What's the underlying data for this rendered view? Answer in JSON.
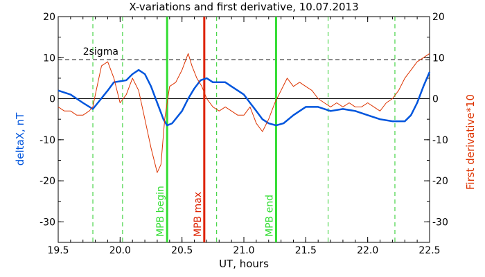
{
  "chart_data": {
    "type": "line",
    "title": "X-variations and first derivative, 10.07.2013",
    "xlabel": "UT, hours",
    "ylabel_left": "deltaX, nT",
    "ylabel_right": "First derivative*10",
    "xlim": [
      19.5,
      22.5
    ],
    "ylim": [
      -35,
      20
    ],
    "x_ticks": [
      19.5,
      20.0,
      20.5,
      21.0,
      21.5,
      22.0,
      22.5
    ],
    "y_ticks": [
      20,
      10,
      0,
      -10,
      -20,
      -30
    ],
    "x_tick_labels": [
      "19.5",
      "20.0",
      "20.5",
      "21.0",
      "21.5",
      "22.0",
      "22.5"
    ],
    "y_tick_labels": [
      "20",
      "10",
      "0",
      "-10",
      "-20",
      "-30"
    ],
    "threshold": {
      "label": "2sigma",
      "value": 9.5
    },
    "zero_line": 0,
    "dashed_verticals": [
      19.78,
      20.02,
      20.78,
      21.68,
      22.22
    ],
    "markers": [
      {
        "x": 20.38,
        "label": "MPB begin",
        "color": "#33dd33"
      },
      {
        "x": 20.68,
        "label": "MPB max",
        "color": "#dd2200"
      },
      {
        "x": 21.26,
        "label": "MPB end",
        "color": "#33dd33"
      }
    ],
    "series": [
      {
        "name": "deltaX, nT",
        "axis": "left",
        "color": "#0055dd",
        "x": [
          19.5,
          19.6,
          19.7,
          19.78,
          19.82,
          19.9,
          19.95,
          20.05,
          20.1,
          20.15,
          20.2,
          20.25,
          20.3,
          20.35,
          20.38,
          20.42,
          20.5,
          20.55,
          20.6,
          20.65,
          20.7,
          20.75,
          20.8,
          20.85,
          20.9,
          20.95,
          21.0,
          21.05,
          21.1,
          21.15,
          21.2,
          21.26,
          21.32,
          21.4,
          21.5,
          21.6,
          21.7,
          21.8,
          21.9,
          22.0,
          22.1,
          22.2,
          22.25,
          22.3,
          22.35,
          22.4,
          22.45,
          22.5
        ],
        "y": [
          2,
          1,
          -1,
          -2.5,
          -1,
          2,
          4,
          4.5,
          6,
          7,
          6,
          3,
          -1,
          -5,
          -6.5,
          -6,
          -3,
          0,
          2.5,
          4.5,
          5,
          4,
          4,
          4,
          3,
          2,
          1,
          -1,
          -3,
          -5,
          -6,
          -6.5,
          -6,
          -4,
          -2,
          -2,
          -3,
          -2.5,
          -3,
          -4,
          -5,
          -5.5,
          -5.5,
          -5.5,
          -4,
          -1,
          3,
          6.5
        ]
      },
      {
        "name": "First derivative*10",
        "axis": "right",
        "color": "#dd3300",
        "x": [
          19.5,
          19.55,
          19.6,
          19.65,
          19.7,
          19.75,
          19.78,
          19.8,
          19.85,
          19.9,
          19.95,
          20.0,
          20.05,
          20.1,
          20.15,
          20.2,
          20.25,
          20.3,
          20.33,
          20.36,
          20.4,
          20.45,
          20.5,
          20.55,
          20.58,
          20.62,
          20.66,
          20.7,
          20.75,
          20.8,
          20.85,
          20.9,
          20.95,
          21.0,
          21.05,
          21.1,
          21.15,
          21.2,
          21.25,
          21.3,
          21.35,
          21.4,
          21.45,
          21.5,
          21.55,
          21.6,
          21.65,
          21.7,
          21.75,
          21.8,
          21.85,
          21.9,
          21.95,
          22.0,
          22.05,
          22.1,
          22.15,
          22.2,
          22.25,
          22.3,
          22.35,
          22.4,
          22.45,
          22.5
        ],
        "y": [
          -2,
          -3,
          -3,
          -4,
          -4,
          -3,
          -2,
          1,
          8,
          9,
          5,
          -1,
          1,
          5,
          2,
          -5,
          -12,
          -18,
          -16,
          -5,
          3,
          4,
          7,
          11,
          8,
          5,
          3,
          0,
          -2,
          -3,
          -2,
          -3,
          -4,
          -4,
          -2,
          -6,
          -8,
          -5,
          -1,
          2,
          5,
          3,
          4,
          3,
          2,
          0,
          -1,
          -2,
          -1,
          -2,
          -1,
          -2,
          -2,
          -1,
          -2,
          -3,
          -1,
          0,
          2,
          5,
          7,
          9,
          10,
          11
        ]
      }
    ]
  }
}
